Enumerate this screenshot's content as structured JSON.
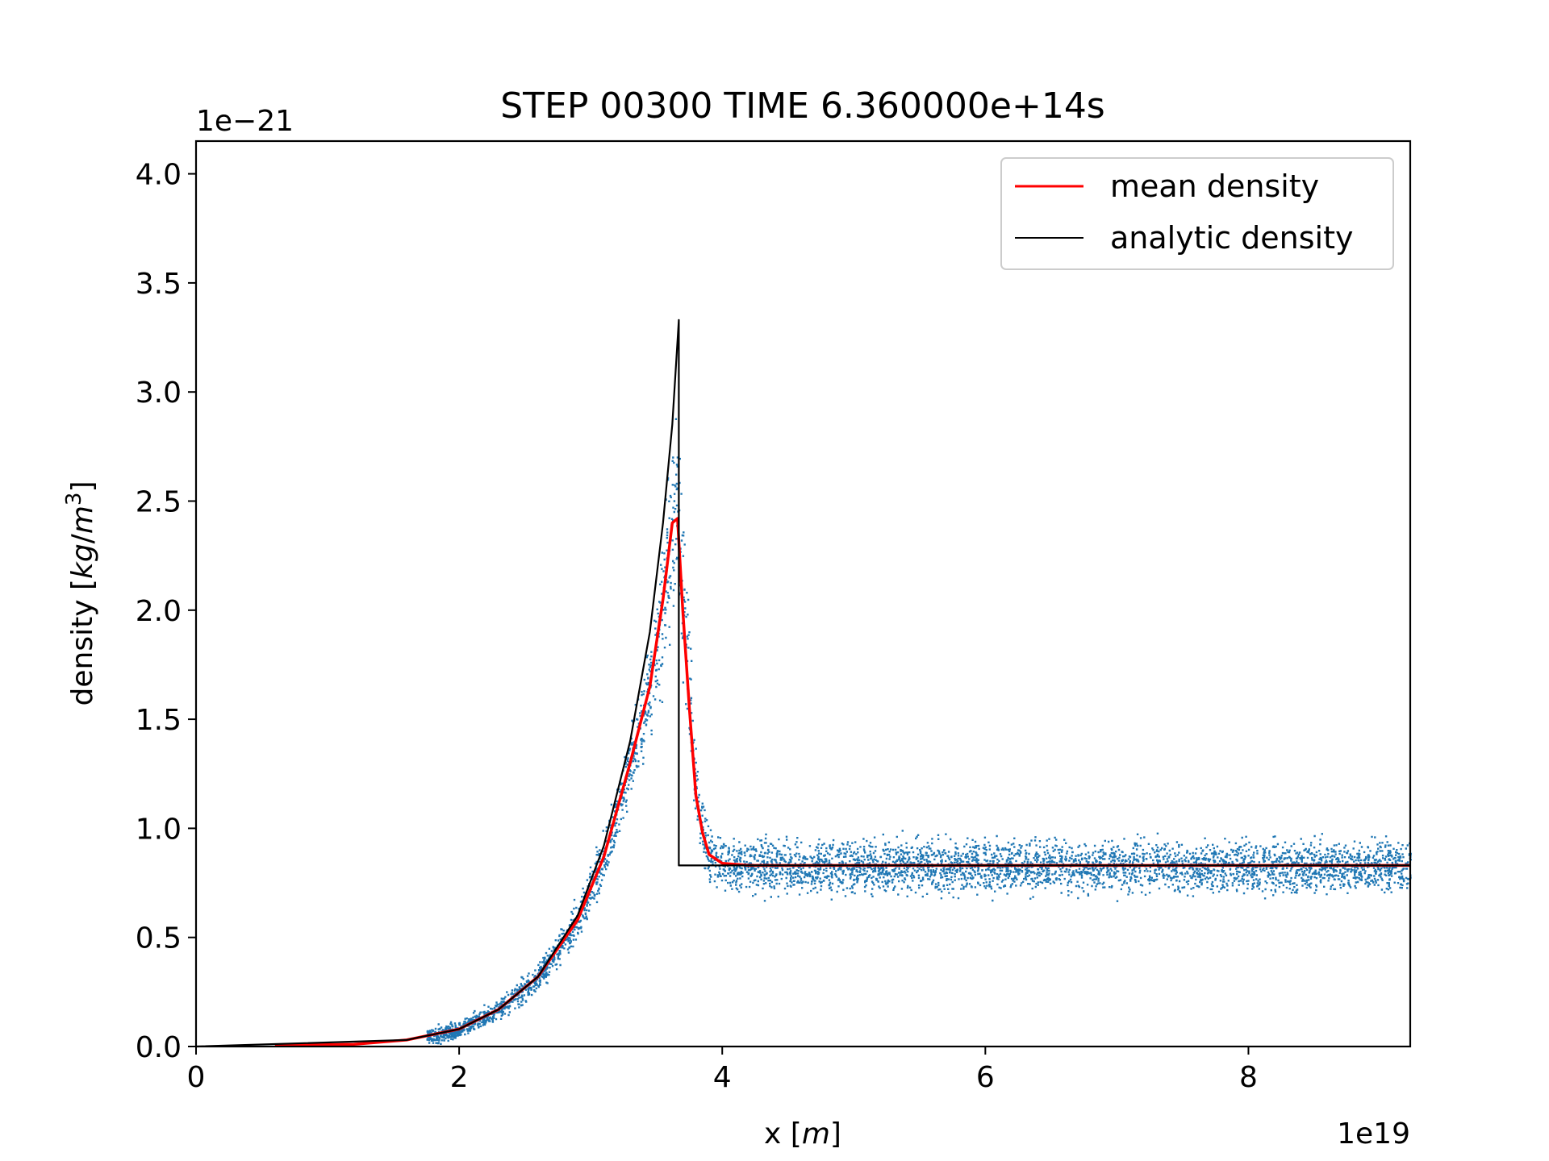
{
  "chart_data": {
    "type": "line",
    "title": "STEP 00300 TIME 6.360000e+14s",
    "xlabel": "x [m]",
    "ylabel": "density [kg/m³]",
    "x_offset_label": "1e19",
    "y_offset_label": "1e−21",
    "x_unit": 1e+19,
    "y_unit": 1e-21,
    "xlim": [
      0,
      9.23
    ],
    "ylim": [
      0,
      4.15
    ],
    "x_ticks": [
      0,
      2,
      4,
      6,
      8
    ],
    "x_tick_labels": [
      "0",
      "2",
      "4",
      "6",
      "8"
    ],
    "y_ticks": [
      0,
      0.5,
      1.0,
      1.5,
      2.0,
      2.5,
      3.0,
      3.5,
      4.0
    ],
    "y_tick_labels": [
      "0.0",
      "0.5",
      "1.0",
      "1.5",
      "2.0",
      "2.5",
      "3.0",
      "3.5",
      "4.0"
    ],
    "grid": false,
    "legend_position": "top-right",
    "colors": {
      "mean": "#ff0000",
      "analytic": "#000000",
      "scatter": "#1f77b4"
    },
    "series": [
      {
        "name": "mean density",
        "x": [
          0.6,
          1.2,
          1.6,
          2.0,
          2.3,
          2.6,
          2.9,
          3.1,
          3.3,
          3.45,
          3.55,
          3.62,
          3.66,
          3.7,
          3.75,
          3.8,
          3.85,
          3.9,
          4.0,
          4.2,
          5.0,
          6.0,
          7.0,
          8.0,
          9.23
        ],
        "y": [
          0.005,
          0.01,
          0.03,
          0.08,
          0.17,
          0.32,
          0.58,
          0.87,
          1.3,
          1.65,
          2.05,
          2.4,
          2.42,
          2.0,
          1.55,
          1.15,
          0.98,
          0.88,
          0.84,
          0.83,
          0.83,
          0.83,
          0.83,
          0.83,
          0.83
        ]
      },
      {
        "name": "analytic density",
        "x": [
          0,
          1.6,
          2.0,
          2.3,
          2.6,
          2.9,
          3.1,
          3.3,
          3.45,
          3.55,
          3.62,
          3.67,
          3.67,
          9.23
        ],
        "y": [
          0,
          0.03,
          0.08,
          0.17,
          0.32,
          0.6,
          0.92,
          1.4,
          1.9,
          2.4,
          2.85,
          3.33,
          0.83,
          0.83
        ]
      }
    ]
  }
}
